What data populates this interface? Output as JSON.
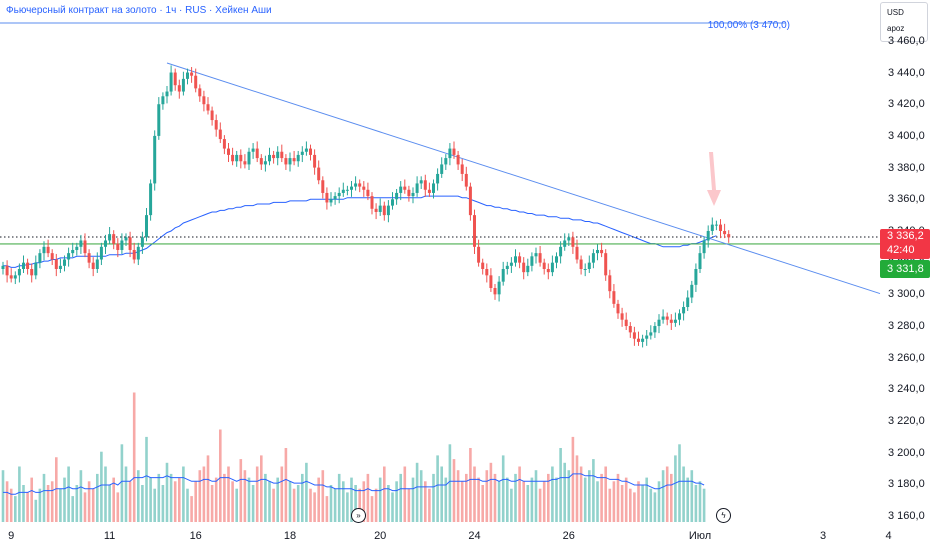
{
  "header": {
    "title": "Фьючерсный контракт на золото · 1ч · RUS · Хейкен Аши",
    "currency": "USD",
    "currency_sub": "apoz"
  },
  "fib_label": "100,00% (3 470,0)",
  "price_tags": {
    "last": "3 336,2",
    "countdown": "42:40",
    "level": "3 331,8"
  },
  "colors": {
    "up": "#26a69a",
    "down": "#ef5350",
    "trendline": "#5b8def",
    "green_line": "#4caf50",
    "ma": "#2962ff"
  },
  "icons": {
    "replay": "double-chevron-icon",
    "flash": "lightning-icon"
  },
  "chart_data": {
    "type": "candlestick",
    "ylim": [
      3150,
      3470
    ],
    "y_ticks": [
      "3 460,0",
      "3 440,0",
      "3 420,0",
      "3 400,0",
      "3 380,0",
      "3 360,0",
      "3 340,0",
      "3 320,0",
      "3 300,0",
      "3 280,0",
      "3 260,0",
      "3 240,0",
      "3 220,0",
      "3 200,0",
      "3 180,0",
      "3 160,0"
    ],
    "y_tick_values": [
      3460,
      3440,
      3420,
      3400,
      3380,
      3360,
      3340,
      3320,
      3300,
      3280,
      3260,
      3240,
      3220,
      3200,
      3180,
      3160
    ],
    "x_ticks": [
      "9",
      "11",
      "16",
      "18",
      "20",
      "24",
      "26",
      "Июл",
      "3",
      "4"
    ],
    "x_tick_index": [
      2,
      26,
      47,
      70,
      92,
      115,
      138,
      170,
      200,
      216
    ],
    "ohlc_path": [
      3318,
      3312,
      3310,
      3312,
      3316,
      3320,
      3316,
      3312,
      3320,
      3326,
      3330,
      3326,
      3322,
      3316,
      3318,
      3322,
      3326,
      3328,
      3330,
      3334,
      3326,
      3320,
      3316,
      3322,
      3330,
      3334,
      3338,
      3332,
      3328,
      3334,
      3336,
      3328,
      3322,
      3330,
      3336,
      3350,
      3370,
      3400,
      3420,
      3425,
      3428,
      3440,
      3432,
      3428,
      3436,
      3440,
      3438,
      3430,
      3425,
      3420,
      3416,
      3410,
      3404,
      3398,
      3392,
      3388,
      3384,
      3388,
      3384,
      3382,
      3390,
      3392,
      3386,
      3382,
      3384,
      3388,
      3386,
      3390,
      3386,
      3382,
      3386,
      3384,
      3388,
      3390,
      3392,
      3388,
      3380,
      3372,
      3364,
      3358,
      3360,
      3362,
      3364,
      3366,
      3366,
      3368,
      3370,
      3368,
      3366,
      3362,
      3354,
      3352,
      3356,
      3350,
      3356,
      3360,
      3364,
      3368,
      3366,
      3362,
      3364,
      3370,
      3372,
      3366,
      3364,
      3370,
      3376,
      3382,
      3386,
      3392,
      3388,
      3382,
      3376,
      3368,
      3350,
      3330,
      3320,
      3316,
      3312,
      3304,
      3300,
      3308,
      3316,
      3318,
      3320,
      3324,
      3320,
      3314,
      3318,
      3324,
      3326,
      3320,
      3316,
      3314,
      3320,
      3324,
      3330,
      3334,
      3336,
      3330,
      3322,
      3316,
      3316,
      3320,
      3326,
      3328,
      3326,
      3312,
      3302,
      3294,
      3288,
      3284,
      3280,
      3276,
      3272,
      3270,
      3272,
      3274,
      3276,
      3280,
      3284,
      3286,
      3284,
      3282,
      3284,
      3288,
      3292,
      3298,
      3306,
      3316,
      3326,
      3334,
      3340,
      3344,
      3344,
      3340,
      3338,
      3336
    ],
    "ma_path": [
      3318,
      3318,
      3317,
      3317,
      3318,
      3318,
      3319,
      3319,
      3320,
      3320,
      3321,
      3321,
      3322,
      3322,
      3323,
      3323,
      3323,
      3323,
      3324,
      3324,
      3324,
      3324,
      3324,
      3324,
      3324,
      3324,
      3325,
      3325,
      3325,
      3325,
      3326,
      3326,
      3326,
      3327,
      3328,
      3329,
      3331,
      3333,
      3335,
      3337,
      3339,
      3340,
      3342,
      3343,
      3345,
      3346,
      3347,
      3348,
      3349,
      3350,
      3351,
      3352,
      3352,
      3353,
      3353,
      3354,
      3354,
      3355,
      3355,
      3356,
      3356,
      3356,
      3357,
      3357,
      3357,
      3357,
      3358,
      3358,
      3358,
      3358,
      3359,
      3359,
      3359,
      3359,
      3359,
      3360,
      3360,
      3360,
      3360,
      3360,
      3360,
      3360,
      3360,
      3360,
      3361,
      3361,
      3361,
      3361,
      3361,
      3361,
      3361,
      3361,
      3361,
      3361,
      3361,
      3361,
      3361,
      3361,
      3361,
      3361,
      3361,
      3361,
      3361,
      3362,
      3362,
      3362,
      3362,
      3362,
      3362,
      3362,
      3362,
      3362,
      3361,
      3361,
      3360,
      3359,
      3358,
      3357,
      3356,
      3356,
      3355,
      3355,
      3354,
      3354,
      3353,
      3353,
      3352,
      3352,
      3351,
      3351,
      3350,
      3350,
      3350,
      3349,
      3349,
      3349,
      3348,
      3348,
      3348,
      3347,
      3347,
      3347,
      3346,
      3346,
      3345,
      3345,
      3344,
      3343,
      3342,
      3341,
      3340,
      3339,
      3338,
      3337,
      3336,
      3335,
      3334,
      3333,
      3332,
      3332,
      3331,
      3330,
      3330,
      3330,
      3330,
      3330,
      3331,
      3331,
      3332,
      3332,
      3333,
      3334,
      3335,
      3336,
      3337
    ],
    "trendlines": [
      {
        "name": "trendline",
        "points": [
          [
            40,
            3446
          ],
          [
            212,
            3300
          ]
        ]
      },
      {
        "name": "support",
        "points": [
          [
            0,
            3331.8
          ],
          [
            220,
            3331.8
          ]
        ]
      }
    ],
    "dotted_level": 3336.2,
    "fib_level": 3470.0
  },
  "volume_data": [
    28,
    22,
    18,
    14,
    30,
    20,
    16,
    24,
    12,
    18,
    26,
    20,
    22,
    35,
    18,
    24,
    30,
    14,
    20,
    28,
    16,
    22,
    18,
    26,
    38,
    30,
    20,
    24,
    16,
    42,
    30,
    22,
    70,
    28,
    20,
    46,
    24,
    18,
    26,
    20,
    32,
    26,
    22,
    24,
    30,
    18,
    14,
    22,
    28,
    30,
    36,
    20,
    24,
    50,
    26,
    30,
    22,
    18,
    34,
    28,
    24,
    20,
    30,
    36,
    26,
    22,
    18,
    24,
    30,
    40,
    22,
    18,
    20,
    26,
    32,
    18,
    16,
    24,
    28,
    14,
    20,
    18,
    26,
    22,
    16,
    24,
    20,
    18,
    22,
    26,
    14,
    18,
    24,
    30,
    20,
    16,
    22,
    26,
    30,
    18,
    24,
    32,
    28,
    22,
    18,
    26,
    36,
    30,
    24,
    42,
    34,
    28,
    22,
    26,
    40,
    30,
    24,
    20,
    28,
    32,
    26,
    22,
    36,
    24,
    18,
    26,
    30,
    22,
    20,
    24,
    28,
    18,
    22,
    26,
    30,
    24,
    40,
    32,
    28,
    46,
    36,
    30,
    24,
    28,
    34,
    22,
    26,
    30,
    18,
    22,
    26,
    20,
    24,
    18,
    16,
    22,
    20,
    24,
    18,
    16,
    22,
    28,
    30,
    26,
    36,
    42,
    30,
    24,
    28,
    20,
    22,
    18
  ],
  "volume_ma": [
    16,
    16,
    15,
    15,
    16,
    16,
    16,
    17,
    16,
    16,
    17,
    17,
    17,
    18,
    18,
    18,
    19,
    18,
    18,
    19,
    18,
    18,
    18,
    19,
    20,
    20,
    20,
    21,
    20,
    22,
    22,
    22,
    24,
    24,
    24,
    25,
    24,
    24,
    24,
    24,
    25,
    24,
    24,
    24,
    24,
    23,
    22,
    22,
    22,
    23,
    23,
    22,
    22,
    24,
    24,
    24,
    23,
    22,
    23,
    23,
    22,
    22,
    22,
    23,
    23,
    22,
    21,
    21,
    22,
    23,
    22,
    21,
    21,
    21,
    22,
    21,
    20,
    20,
    20,
    19,
    19,
    18,
    18,
    18,
    18,
    18,
    17,
    17,
    17,
    18,
    17,
    17,
    17,
    18,
    18,
    17,
    17,
    18,
    18,
    18,
    18,
    19,
    19,
    19,
    19,
    19,
    20,
    20,
    20,
    22,
    22,
    22,
    22,
    22,
    23,
    23,
    23,
    22,
    22,
    23,
    23,
    22,
    23,
    23,
    22,
    22,
    23,
    22,
    22,
    22,
    22,
    22,
    22,
    22,
    23,
    23,
    24,
    24,
    24,
    26,
    26,
    26,
    25,
    25,
    25,
    24,
    24,
    24,
    23,
    23,
    23,
    22,
    22,
    21,
    20,
    20,
    20,
    20,
    19,
    18,
    18,
    19,
    20,
    20,
    21,
    22,
    22,
    22,
    22,
    21,
    21,
    20
  ]
}
